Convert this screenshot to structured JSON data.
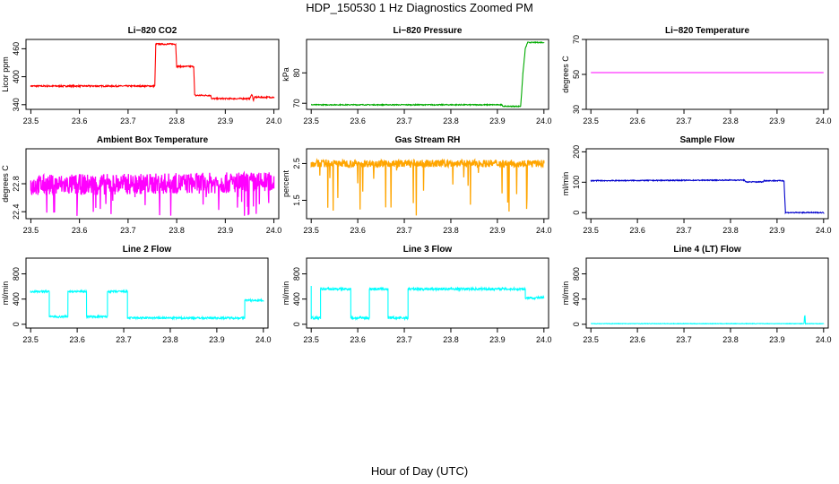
{
  "page": {
    "title": "HDP_150530  1 Hz Diagnostics Zoomed PM",
    "xlabel": "Hour of Day (UTC)"
  },
  "chart_data": [
    {
      "type": "line",
      "title": "Li−820 CO2",
      "ylabel": "Licor ppm",
      "color": "#ff0000",
      "xlim": [
        23.49,
        24.01
      ],
      "ylim": [
        330,
        480
      ],
      "xticks": [
        23.5,
        23.6,
        23.7,
        23.8,
        23.9,
        24.0
      ],
      "xtick_labels": [
        "23.5",
        "23.6",
        "23.7",
        "23.8",
        "23.9",
        "24.0"
      ],
      "yticks": [
        340,
        400,
        460
      ],
      "ytick_labels": [
        "340",
        "400",
        "460"
      ],
      "noise": 1.5,
      "x": [
        23.5,
        23.755,
        23.757,
        23.798,
        23.8,
        23.835,
        23.837,
        23.87,
        23.872,
        23.95,
        23.955,
        23.958,
        23.96,
        24.0
      ],
      "y": [
        380,
        380,
        470,
        470,
        422,
        422,
        360,
        360,
        353,
        353,
        362,
        349,
        356,
        356
      ]
    },
    {
      "type": "line",
      "title": "Li−820 Pressure",
      "ylabel": "kPa",
      "color": "#00aa00",
      "xlim": [
        23.49,
        24.01
      ],
      "ylim": [
        68,
        91
      ],
      "xticks": [
        23.5,
        23.6,
        23.7,
        23.8,
        23.9,
        24.0
      ],
      "xtick_labels": [
        "23.5",
        "23.6",
        "23.7",
        "23.8",
        "23.9",
        "24.0"
      ],
      "yticks": [
        70,
        80
      ],
      "ytick_labels": [
        "70",
        "80"
      ],
      "noise": 0.15,
      "x": [
        23.5,
        23.91,
        23.912,
        23.95,
        23.955,
        23.96,
        23.965,
        24.0
      ],
      "y": [
        69.5,
        69.5,
        69,
        69,
        80,
        88,
        90,
        90
      ]
    },
    {
      "type": "line",
      "title": "Li−820 Temperature",
      "ylabel": "degrees C",
      "color": "#ff00ff",
      "xlim": [
        23.49,
        24.01
      ],
      "ylim": [
        30,
        70
      ],
      "xticks": [
        23.5,
        23.6,
        23.7,
        23.8,
        23.9,
        24.0
      ],
      "xtick_labels": [
        "23.5",
        "23.6",
        "23.7",
        "23.8",
        "23.9",
        "24.0"
      ],
      "yticks": [
        30,
        50,
        70
      ],
      "ytick_labels": [
        "30",
        "50",
        "70"
      ],
      "noise": 0,
      "x": [
        23.5,
        24.0
      ],
      "y": [
        51,
        51
      ]
    },
    {
      "type": "line",
      "title": "Ambient Box Temperature",
      "ylabel": "degrees C",
      "color": "#ff00ff",
      "xlim": [
        23.49,
        24.01
      ],
      "ylim": [
        22.3,
        23.3
      ],
      "xticks": [
        23.5,
        23.6,
        23.7,
        23.8,
        23.9,
        24.0
      ],
      "xtick_labels": [
        "23.5",
        "23.6",
        "23.7",
        "23.8",
        "23.9",
        "24.0"
      ],
      "yticks": [
        22.4,
        22.8
      ],
      "ytick_labels": [
        "22.4",
        "22.8"
      ],
      "noise": 0.15,
      "x": [
        23.5,
        24.0
      ],
      "y": [
        22.78,
        22.82
      ]
    },
    {
      "type": "line",
      "title": "Gas Stream RH",
      "ylabel": "percent",
      "color": "#ffa500",
      "xlim": [
        23.49,
        24.01
      ],
      "ylim": [
        1.0,
        2.9
      ],
      "xticks": [
        23.5,
        23.6,
        23.7,
        23.8,
        23.9,
        24.0
      ],
      "xtick_labels": [
        "23.5",
        "23.6",
        "23.7",
        "23.8",
        "23.9",
        "24.0"
      ],
      "yticks": [
        1.5,
        2.5
      ],
      "ytick_labels": [
        "1.5",
        "2.5"
      ],
      "noise": 0.1,
      "x": [
        23.5,
        24.0
      ],
      "y": [
        2.5,
        2.5
      ]
    },
    {
      "type": "line",
      "title": "Sample Flow",
      "ylabel": "ml/min",
      "color": "#0000cc",
      "xlim": [
        23.49,
        24.01
      ],
      "ylim": [
        -20,
        210
      ],
      "xticks": [
        23.5,
        23.6,
        23.7,
        23.8,
        23.9,
        24.0
      ],
      "xtick_labels": [
        "23.5",
        "23.6",
        "23.7",
        "23.8",
        "23.9",
        "24.0"
      ],
      "yticks": [
        0,
        100,
        200
      ],
      "ytick_labels": [
        "0",
        "100",
        "200"
      ],
      "noise": 1.5,
      "x": [
        23.5,
        23.83,
        23.832,
        23.87,
        23.872,
        23.915,
        23.918,
        24.0
      ],
      "y": [
        105,
        107,
        101,
        101,
        105,
        105,
        0,
        0
      ]
    },
    {
      "type": "line",
      "title": "Line 2 Flow",
      "ylabel": "ml/min",
      "color": "#00ffff",
      "xlim": [
        23.49,
        24.01
      ],
      "ylim": [
        -60,
        1050
      ],
      "xticks": [
        23.5,
        23.6,
        23.7,
        23.8,
        23.9,
        24.0
      ],
      "xtick_labels": [
        "23.5",
        "23.6",
        "23.7",
        "23.8",
        "23.9",
        "24.0"
      ],
      "yticks": [
        0,
        400,
        800
      ],
      "ytick_labels": [
        "0",
        "400",
        "800"
      ],
      "noise": 15,
      "x": [
        23.5,
        23.5001,
        23.54,
        23.5401,
        23.58,
        23.5801,
        23.62,
        23.6201,
        23.665,
        23.6651,
        23.708,
        23.7081,
        23.96,
        23.9601,
        24.0
      ],
      "y": [
        520,
        520,
        520,
        120,
        120,
        520,
        520,
        120,
        120,
        520,
        520,
        100,
        100,
        380,
        380
      ]
    },
    {
      "type": "line",
      "title": "Line 3 Flow",
      "ylabel": "ml/min",
      "color": "#00ffff",
      "xlim": [
        23.49,
        24.01
      ],
      "ylim": [
        -60,
        1050
      ],
      "xticks": [
        23.5,
        23.6,
        23.7,
        23.8,
        23.9,
        24.0
      ],
      "xtick_labels": [
        "23.5",
        "23.6",
        "23.7",
        "23.8",
        "23.9",
        "24.0"
      ],
      "yticks": [
        0,
        400,
        800
      ],
      "ytick_labels": [
        "0",
        "400",
        "800"
      ],
      "noise": 20,
      "x": [
        23.5,
        23.5001,
        23.52,
        23.5201,
        23.562,
        23.5621,
        23.585,
        23.5851,
        23.625,
        23.6251,
        23.645,
        23.6451,
        23.665,
        23.6651,
        23.708,
        23.7081,
        23.96,
        23.9601,
        24.0
      ],
      "y": [
        600,
        100,
        100,
        560,
        560,
        560,
        560,
        100,
        100,
        560,
        560,
        560,
        560,
        100,
        100,
        560,
        560,
        420,
        420
      ]
    },
    {
      "type": "line",
      "title": "Line 4 (LT) Flow",
      "ylabel": "ml/min",
      "color": "#00ffff",
      "xlim": [
        23.49,
        24.01
      ],
      "ylim": [
        -60,
        1050
      ],
      "xticks": [
        23.5,
        23.6,
        23.7,
        23.8,
        23.9,
        24.0
      ],
      "xtick_labels": [
        "23.5",
        "23.6",
        "23.7",
        "23.8",
        "23.9",
        "24.0"
      ],
      "yticks": [
        0,
        400,
        800
      ],
      "ytick_labels": [
        "0",
        "400",
        "800"
      ],
      "noise": 4,
      "x": [
        23.5,
        23.958,
        23.959,
        23.96,
        23.961,
        24.0
      ],
      "y": [
        10,
        10,
        120,
        140,
        10,
        10
      ]
    }
  ]
}
